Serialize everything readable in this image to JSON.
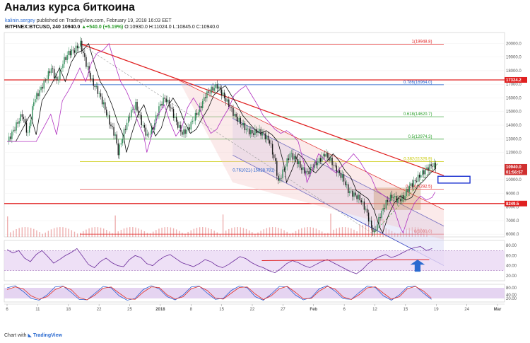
{
  "header": {
    "title": "Анализ курса биткоина",
    "user": "kalinin.sergey",
    "published": "published on TradingView.com, February 19, 2018 16:03 EET"
  },
  "ohlc": {
    "symbol": "BITFINEX:BTCUSD, 240",
    "last": "10940.0",
    "change": "▲+540.0 (+5.19%)",
    "o": "O:10930.0",
    "h": "H:11024.0",
    "l": "L:10845.0",
    "c": "C:10940.0"
  },
  "footer": {
    "prefix": "Chart with",
    "brand": "TradingView"
  },
  "colors": {
    "up": "#2e8b57",
    "down": "#1a1a1a",
    "fib_red": "#e02020",
    "fib_green": "#2aa02a",
    "fib_yellow": "#c8c800",
    "fib_blue": "#2060d0",
    "channel": "#3040c0",
    "ma": "#b030c0",
    "rsi": "#6a2a9a",
    "stoch_k": "#2a5ad0",
    "stoch_d": "#e0302a",
    "volume": "#e07070",
    "arrow": "#2a6ad0"
  },
  "chart_data": [
    {
      "type": "candlestick",
      "x_ticks": [
        "6",
        "11",
        "18",
        "22",
        "25",
        "2018",
        "8",
        "15",
        "22",
        "27",
        "Feb",
        "6",
        "12",
        "15",
        "19",
        "24",
        "Mar"
      ],
      "y_ticks": [
        6000.0,
        7000.0,
        8000.0,
        9000.0,
        10000.0,
        11000.0,
        12000.0,
        13000.0,
        14000.0,
        15000.0,
        16000.0,
        17000.0,
        18000.0,
        19000.0,
        20000.0
      ],
      "ylim": [
        5800,
        20800
      ],
      "close_path": [
        [
          0,
          12800
        ],
        [
          5,
          13800
        ],
        [
          10,
          14800
        ],
        [
          14,
          13300
        ],
        [
          18,
          15800
        ],
        [
          22,
          16500
        ],
        [
          26,
          17300
        ],
        [
          30,
          18200
        ],
        [
          34,
          17200
        ],
        [
          38,
          18600
        ],
        [
          42,
          19300
        ],
        [
          46,
          19500
        ],
        [
          50,
          19983
        ],
        [
          54,
          18500
        ],
        [
          58,
          17200
        ],
        [
          62,
          16500
        ],
        [
          66,
          15500
        ],
        [
          70,
          14200
        ],
        [
          74,
          13200
        ],
        [
          76,
          12000
        ],
        [
          80,
          13500
        ],
        [
          84,
          14800
        ],
        [
          88,
          15500
        ],
        [
          92,
          14200
        ],
        [
          96,
          13200
        ],
        [
          100,
          13800
        ],
        [
          104,
          15300
        ],
        [
          108,
          16000
        ],
        [
          112,
          15300
        ],
        [
          116,
          14200
        ],
        [
          120,
          13400
        ],
        [
          124,
          13700
        ],
        [
          128,
          14500
        ],
        [
          132,
          15200
        ],
        [
          136,
          16200
        ],
        [
          140,
          16600
        ],
        [
          144,
          16900
        ],
        [
          148,
          16200
        ],
        [
          152,
          15500
        ],
        [
          156,
          14700
        ],
        [
          160,
          14200
        ],
        [
          164,
          13700
        ],
        [
          168,
          13400
        ],
        [
          172,
          13600
        ],
        [
          176,
          13300
        ],
        [
          180,
          12800
        ],
        [
          184,
          11200
        ],
        [
          186,
          9800
        ],
        [
          190,
          10800
        ],
        [
          194,
          11900
        ],
        [
          198,
          11500
        ],
        [
          202,
          10800
        ],
        [
          206,
          10500
        ],
        [
          210,
          11000
        ],
        [
          214,
          11400
        ],
        [
          218,
          11900
        ],
        [
          222,
          11400
        ],
        [
          226,
          10700
        ],
        [
          230,
          10200
        ],
        [
          234,
          9200
        ],
        [
          238,
          8900
        ],
        [
          242,
          8600
        ],
        [
          246,
          7800
        ],
        [
          250,
          6500
        ],
        [
          252,
          6100
        ],
        [
          256,
          7400
        ],
        [
          260,
          8300
        ],
        [
          264,
          8800
        ],
        [
          268,
          8500
        ],
        [
          272,
          8700
        ],
        [
          276,
          9500
        ],
        [
          280,
          9900
        ],
        [
          284,
          10400
        ],
        [
          288,
          10800
        ],
        [
          292,
          11100
        ],
        [
          294,
          10940
        ]
      ],
      "current_price": "10940.0",
      "price_tags": [
        "17324.2",
        "10940.0",
        "8249.5",
        "01:56:57"
      ],
      "fib_levels": [
        {
          "label": "1(19948.8)",
          "value": 19948.8,
          "color": "fib_red"
        },
        {
          "label": "0.786(16964.0)",
          "value": 16964.0,
          "color": "fib_blue"
        },
        {
          "label": "0.618(14620.7)",
          "value": 14620.7,
          "color": "fib_green"
        },
        {
          "label": "0.5(12974.3)",
          "value": 12974.3,
          "color": "fib_green"
        },
        {
          "label": "0.382(11326.9)",
          "value": 11326.9,
          "color": "fib_yellow"
        },
        {
          "label": "0.236(9292.5)",
          "value": 9292.5,
          "color": "fib_red"
        },
        {
          "label": "0(6000.0)",
          "value": 6000.0,
          "color": "fib_red"
        }
      ],
      "horizontal_lines": [
        17324.2,
        8249.5
      ],
      "annotation": "0.761021(-15828.781)"
    },
    {
      "type": "line",
      "name": "RSI",
      "y_ticks": [
        80.0,
        60.0,
        40.0,
        20.0
      ],
      "ylim": [
        10,
        90
      ],
      "values": [
        72,
        65,
        70,
        55,
        48,
        62,
        70,
        58,
        45,
        52,
        60,
        66,
        74,
        58,
        42,
        36,
        48,
        55,
        46,
        40,
        38,
        52,
        60,
        56,
        44,
        40,
        50,
        58,
        62,
        54,
        46,
        42,
        38,
        44,
        52,
        48,
        40,
        36,
        42,
        50,
        58,
        54,
        46,
        40,
        36,
        30,
        26,
        34,
        44,
        50,
        46,
        40,
        36,
        42,
        48,
        52,
        46,
        40,
        34,
        28,
        24,
        32,
        44,
        52,
        58,
        62,
        56,
        60,
        66,
        72,
        76,
        78,
        70,
        74
      ]
    },
    {
      "type": "line",
      "name": "Stochastic",
      "y_ticks": [
        80.0,
        40.0,
        20.0
      ],
      "ylim": [
        0,
        100
      ],
      "series": [
        {
          "values": [
            80,
            92,
            60,
            20,
            10,
            40,
            85,
            90,
            55,
            15,
            12,
            50,
            88,
            80,
            35,
            10,
            20,
            70,
            92,
            75,
            30,
            12,
            40,
            85,
            90,
            50,
            15,
            20,
            65,
            90,
            80,
            30,
            10,
            45,
            88,
            85,
            40,
            12,
            25,
            75,
            92,
            60,
            18,
            15,
            55,
            90,
            82,
            35,
            10,
            40,
            85,
            90,
            50,
            15
          ]
        },
        {
          "values": [
            70,
            85,
            75,
            35,
            15,
            30,
            70,
            88,
            70,
            25,
            12,
            40,
            78,
            85,
            50,
            18,
            15,
            55,
            85,
            82,
            40,
            16,
            30,
            75,
            88,
            65,
            22,
            16,
            50,
            82,
            85,
            45,
            14,
            35,
            75,
            88,
            55,
            18,
            20,
            62,
            88,
            72,
            28,
            14,
            42,
            80,
            86,
            50,
            16,
            30,
            75,
            88,
            62,
            22
          ]
        }
      ]
    }
  ]
}
